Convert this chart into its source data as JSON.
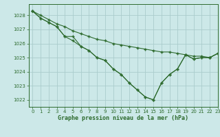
{
  "background_color": "#cce8e8",
  "grid_color": "#aacccc",
  "line_color": "#2d6a2d",
  "title": "Graphe pression niveau de la mer (hPa)",
  "xlim": [
    -0.5,
    23
  ],
  "ylim": [
    1021.5,
    1028.8
  ],
  "yticks": [
    1022,
    1023,
    1024,
    1025,
    1026,
    1027,
    1028
  ],
  "xticks": [
    0,
    1,
    2,
    3,
    4,
    5,
    6,
    7,
    8,
    9,
    10,
    11,
    12,
    13,
    14,
    15,
    16,
    17,
    18,
    19,
    20,
    21,
    22,
    23
  ],
  "line_top_y": [
    1028.3,
    1028.0,
    1027.7,
    1027.4,
    1027.2,
    1026.9,
    1026.7,
    1026.5,
    1026.3,
    1026.2,
    1026.0,
    1025.9,
    1025.8,
    1025.7,
    1025.6,
    1025.5,
    1025.4,
    1025.4,
    1025.3,
    1025.2,
    1025.1,
    1025.1,
    1025.0,
    1025.3
  ],
  "line_mid_y": [
    1028.3,
    1027.8,
    1027.5,
    1027.2,
    1026.5,
    1026.5,
    1025.8,
    1025.5,
    1025.0,
    1024.8,
    1024.2,
    1023.8,
    1023.2,
    1022.7,
    1022.2,
    1022.0,
    1023.2,
    1023.8,
    1024.2,
    1025.2,
    1024.9,
    1025.0,
    1025.0,
    1025.3
  ],
  "line_bot_y": [
    1028.3,
    1027.8,
    1027.5,
    1027.2,
    1026.5,
    1026.2,
    1025.8,
    1025.5,
    1025.0,
    1024.8,
    1024.2,
    1023.8,
    1023.2,
    1022.7,
    1022.2,
    1022.0,
    1023.2,
    1023.8,
    1024.2,
    1025.2,
    1024.9,
    1025.0,
    1025.0,
    1025.3
  ]
}
